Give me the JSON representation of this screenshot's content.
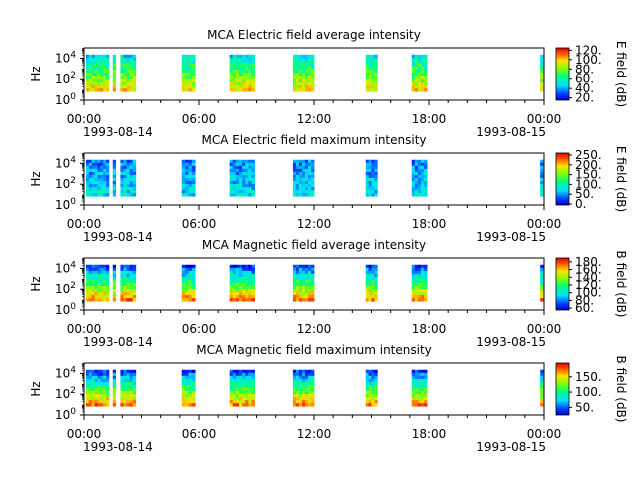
{
  "chart_data": [
    {
      "type": "heatmap",
      "title": "MCA  Electric field average intensity",
      "ylabel": "Hz",
      "yscale": "log",
      "ylim": [
        1,
        100000
      ],
      "y_ticks": [
        {
          "value": 1,
          "base": "10",
          "exp": "0"
        },
        {
          "value": 100,
          "base": "10",
          "exp": "2"
        },
        {
          "value": 10000,
          "base": "10",
          "exp": "4"
        }
      ],
      "x_ticks": [
        "00:00",
        "06:00",
        "12:00",
        "18:00",
        "00:00"
      ],
      "x_date_labels": [
        "1993-08-14",
        "1993-08-15"
      ],
      "colorbar": {
        "label": "E field (dB)",
        "range": [
          15,
          125
        ],
        "ticks": [
          "20.",
          "40.",
          "60.",
          "80.",
          "100.",
          "120."
        ],
        "tick_values": [
          20,
          40,
          60,
          80,
          100,
          120
        ]
      },
      "data_blocks_hours": [
        [
          0.1,
          1.3
        ],
        [
          1.5,
          1.65
        ],
        [
          1.9,
          2.7
        ],
        [
          5.1,
          5.8
        ],
        [
          7.6,
          8.9
        ],
        [
          10.9,
          12.0
        ],
        [
          14.7,
          15.3
        ],
        [
          17.1,
          17.9
        ],
        [
          23.8,
          24.0
        ]
      ],
      "mean_level": 0.55
    },
    {
      "type": "heatmap",
      "title": "MCA  Electric field maximum intensity",
      "ylabel": "Hz",
      "yscale": "log",
      "ylim": [
        1,
        100000
      ],
      "y_ticks": [
        {
          "value": 1,
          "base": "10",
          "exp": "0"
        },
        {
          "value": 100,
          "base": "10",
          "exp": "2"
        },
        {
          "value": 10000,
          "base": "10",
          "exp": "4"
        }
      ],
      "x_ticks": [
        "00:00",
        "06:00",
        "12:00",
        "18:00",
        "00:00"
      ],
      "x_date_labels": [
        "1993-08-14",
        "1993-08-15"
      ],
      "colorbar": {
        "label": "E field (dB)",
        "range": [
          -5,
          260
        ],
        "ticks": [
          "0.",
          "50.",
          "100.",
          "150.",
          "200.",
          "250."
        ],
        "tick_values": [
          0,
          50,
          100,
          150,
          200,
          250
        ]
      },
      "data_blocks_hours": [
        [
          0.1,
          1.3
        ],
        [
          1.5,
          1.65
        ],
        [
          1.9,
          2.7
        ],
        [
          5.1,
          5.8
        ],
        [
          7.6,
          8.9
        ],
        [
          10.9,
          12.0
        ],
        [
          14.7,
          15.3
        ],
        [
          17.1,
          17.9
        ],
        [
          23.8,
          24.0
        ]
      ],
      "mean_level": 0.3
    },
    {
      "type": "heatmap",
      "title": "MCA  Magnetic field average intensity",
      "ylabel": "Hz",
      "yscale": "log",
      "ylim": [
        1,
        100000
      ],
      "y_ticks": [
        {
          "value": 1,
          "base": "10",
          "exp": "0"
        },
        {
          "value": 100,
          "base": "10",
          "exp": "2"
        },
        {
          "value": 10000,
          "base": "10",
          "exp": "4"
        }
      ],
      "x_ticks": [
        "00:00",
        "06:00",
        "12:00",
        "18:00",
        "00:00"
      ],
      "x_date_labels": [
        "1993-08-14",
        "1993-08-15"
      ],
      "colorbar": {
        "label": "B field (dB)",
        "range": [
          55,
          190
        ],
        "ticks": [
          "60.",
          "80.",
          "100.",
          "120.",
          "140.",
          "160.",
          "180."
        ],
        "tick_values": [
          60,
          80,
          100,
          120,
          140,
          160,
          180
        ]
      },
      "data_blocks_hours": [
        [
          0.1,
          1.3
        ],
        [
          1.5,
          1.65
        ],
        [
          1.9,
          2.7
        ],
        [
          5.1,
          5.8
        ],
        [
          7.6,
          8.9
        ],
        [
          10.9,
          12.0
        ],
        [
          14.7,
          15.3
        ],
        [
          17.1,
          17.9
        ],
        [
          23.8,
          24.0
        ]
      ],
      "mean_level": 0.45
    },
    {
      "type": "heatmap",
      "title": "MCA  Magnetic field maximum intensity",
      "ylabel": "Hz",
      "yscale": "log",
      "ylim": [
        1,
        100000
      ],
      "y_ticks": [
        {
          "value": 1,
          "base": "10",
          "exp": "0"
        },
        {
          "value": 100,
          "base": "10",
          "exp": "2"
        },
        {
          "value": 10000,
          "base": "10",
          "exp": "4"
        }
      ],
      "x_ticks": [
        "00:00",
        "06:00",
        "12:00",
        "18:00",
        "00:00"
      ],
      "x_date_labels": [
        "1993-08-14",
        "1993-08-15"
      ],
      "colorbar": {
        "label": "B field (dB)",
        "range": [
          25,
          195
        ],
        "ticks": [
          "50.",
          "100.",
          "150."
        ],
        "tick_values": [
          50,
          100,
          150
        ]
      },
      "data_blocks_hours": [
        [
          0.1,
          1.3
        ],
        [
          1.5,
          1.65
        ],
        [
          1.9,
          2.7
        ],
        [
          5.1,
          5.8
        ],
        [
          7.6,
          8.9
        ],
        [
          10.9,
          12.0
        ],
        [
          14.7,
          15.3
        ],
        [
          17.1,
          17.9
        ],
        [
          23.8,
          24.0
        ]
      ],
      "mean_level": 0.45
    }
  ]
}
